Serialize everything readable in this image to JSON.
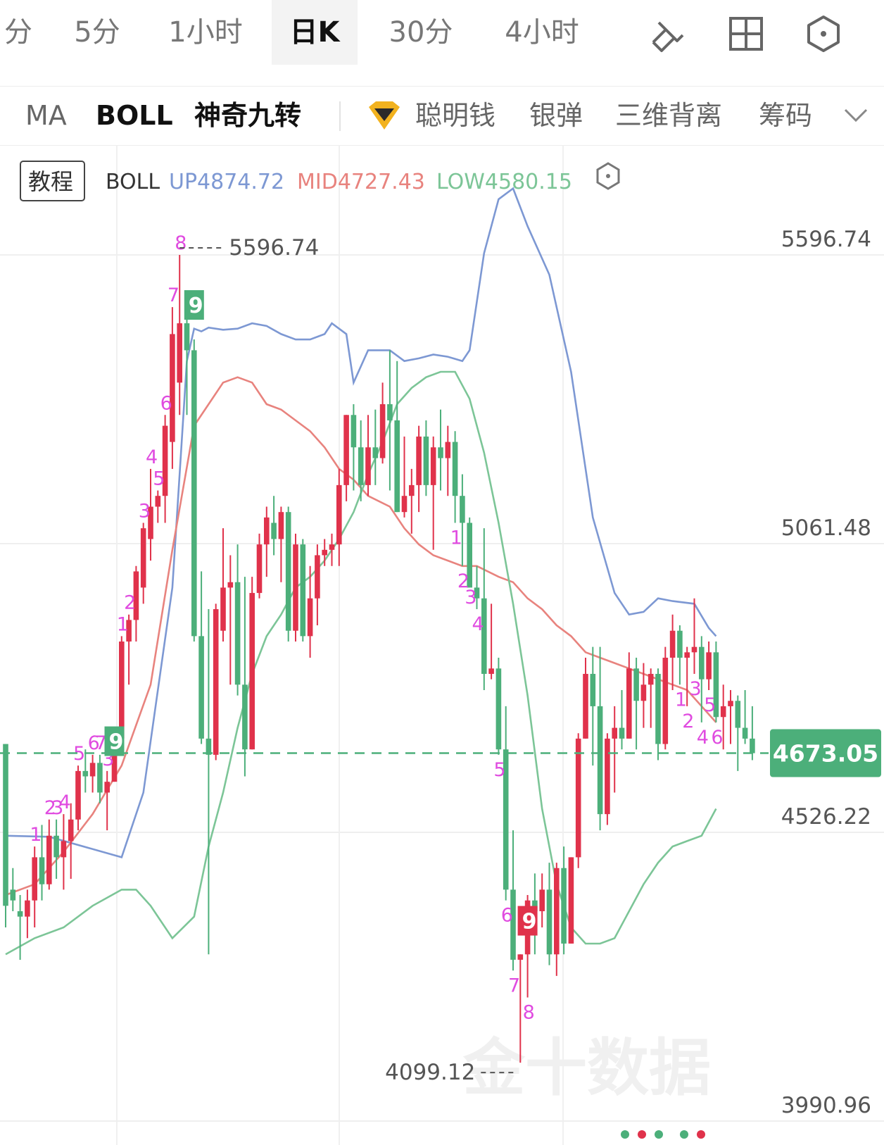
{
  "tabs": [
    {
      "label": "分"
    },
    {
      "label": "5分"
    },
    {
      "label": "1小时"
    },
    {
      "label": "日K",
      "active": true
    },
    {
      "label": "30分"
    },
    {
      "label": "4小时"
    }
  ],
  "tools": [
    "draw-pen-icon",
    "grid-layout-icon",
    "settings-hexagon-icon"
  ],
  "indicators": [
    "MA",
    "BOLL",
    "神奇九转",
    "聪明钱",
    "银弹",
    "三维背离",
    "筹码"
  ],
  "tutorial_label": "教程",
  "legend": {
    "name": "BOLL",
    "up": "UP4874.72",
    "mid": "MID4727.43",
    "low": "LOW4580.15"
  },
  "colors": {
    "up_candle": "#e0324b",
    "down_candle": "#4caf7a",
    "boll_up": "#7d98d3",
    "boll_mid": "#e8837e",
    "boll_low": "#7cc597",
    "td_label": "#e04be0",
    "current_price_bg": "#4caf7a"
  },
  "chart_data": {
    "type": "candlestick",
    "y_axis_ticks": [
      "5596.74",
      "5061.48",
      "4526.22",
      "3990.96"
    ],
    "current_price": "4673.05",
    "high_label": "5596.74",
    "low_label": "4099.12",
    "candles": [
      [
        4690,
        4690,
        4350,
        4390
      ],
      [
        4420,
        4460,
        4380,
        4400
      ],
      [
        4380,
        4410,
        4290,
        4370
      ],
      [
        4370,
        4420,
        4330,
        4400
      ],
      [
        4400,
        4500,
        4350,
        4480
      ],
      [
        4480,
        4540,
        4400,
        4430
      ],
      [
        4430,
        4550,
        4420,
        4520
      ],
      [
        4520,
        4550,
        4440,
        4480
      ],
      [
        4480,
        4560,
        4420,
        4510
      ],
      [
        4510,
        4580,
        4440,
        4550
      ],
      [
        4550,
        4650,
        4530,
        4640
      ],
      [
        4640,
        4680,
        4600,
        4630
      ],
      [
        4630,
        4670,
        4600,
        4655
      ],
      [
        4655,
        4670,
        4580,
        4600
      ],
      [
        4600,
        4640,
        4530,
        4620
      ],
      [
        4620,
        4720,
        4620,
        4700
      ],
      [
        4700,
        4890,
        4680,
        4880
      ],
      [
        4880,
        4930,
        4800,
        4920
      ],
      [
        4920,
        5020,
        4880,
        5010
      ],
      [
        4980,
        5100,
        4950,
        5090
      ],
      [
        5070,
        5200,
        5030,
        5130
      ],
      [
        5130,
        5160,
        5100,
        5150
      ],
      [
        5150,
        5300,
        5100,
        5280
      ],
      [
        5250,
        5500,
        5200,
        5450
      ],
      [
        5360,
        5596.74,
        5300,
        5470
      ],
      [
        5470,
        5490,
        5300,
        5420
      ],
      [
        5420,
        5440,
        4880,
        4890
      ],
      [
        4890,
        5010,
        4690,
        4700
      ],
      [
        4700,
        4940,
        4300,
        4670
      ],
      [
        4670,
        4950,
        4660,
        4940
      ],
      [
        4900,
        5090,
        4880,
        4980
      ],
      [
        4980,
        5040,
        4800,
        4990
      ],
      [
        4990,
        5060,
        4780,
        4800
      ],
      [
        4800,
        5000,
        4630,
        4680
      ],
      [
        4680,
        5000,
        4680,
        4970
      ],
      [
        4970,
        5080,
        4960,
        5060
      ],
      [
        5060,
        5130,
        5000,
        5110
      ],
      [
        5100,
        5150,
        5040,
        5070
      ],
      [
        5070,
        5130,
        4990,
        5120
      ],
      [
        5120,
        5130,
        4880,
        4900
      ],
      [
        4900,
        5080,
        4880,
        5060
      ],
      [
        5060,
        5070,
        4880,
        4890
      ],
      [
        4890,
        5020,
        4850,
        4960
      ],
      [
        4960,
        5060,
        4910,
        5040
      ],
      [
        5040,
        5070,
        5020,
        5050
      ],
      [
        5050,
        5080,
        5020,
        5060
      ],
      [
        5060,
        5200,
        5020,
        5170
      ],
      [
        5170,
        5300,
        5140,
        5300
      ],
      [
        5300,
        5320,
        5160,
        5240
      ],
      [
        5240,
        5290,
        5140,
        5170
      ],
      [
        5170,
        5300,
        5150,
        5240
      ],
      [
        5240,
        5310,
        5170,
        5220
      ],
      [
        5220,
        5360,
        5210,
        5320
      ],
      [
        5320,
        5420,
        5160,
        5290
      ],
      [
        5290,
        5400,
        5120,
        5120
      ],
      [
        5120,
        5260,
        5110,
        5150
      ],
      [
        5150,
        5200,
        5080,
        5170
      ],
      [
        5170,
        5280,
        5120,
        5260
      ],
      [
        5260,
        5290,
        5150,
        5170
      ],
      [
        5170,
        5260,
        5050,
        5240
      ],
      [
        5240,
        5310,
        5160,
        5220
      ],
      [
        5220,
        5280,
        5150,
        5250
      ],
      [
        5250,
        5270,
        5100,
        5150
      ],
      [
        5150,
        5190,
        5020,
        5100
      ],
      [
        5100,
        5110,
        4990,
        4980
      ],
      [
        4980,
        5020,
        4940,
        4960
      ],
      [
        4960,
        5090,
        4790,
        4820
      ],
      [
        4820,
        4950,
        4810,
        4830
      ],
      [
        4830,
        4850,
        4670,
        4680
      ],
      [
        4680,
        4760,
        4400,
        4420
      ],
      [
        4420,
        4530,
        4270,
        4290
      ],
      [
        4290,
        4300,
        4099.12,
        4300
      ],
      [
        4300,
        4410,
        4220,
        4400
      ],
      [
        4400,
        4450,
        4300,
        4380
      ],
      [
        4380,
        4450,
        4350,
        4420
      ],
      [
        4420,
        4470,
        4280,
        4300
      ],
      [
        4300,
        4470,
        4260,
        4460
      ],
      [
        4460,
        4500,
        4300,
        4320
      ],
      [
        4320,
        4480,
        4320,
        4480
      ],
      [
        4480,
        4710,
        4460,
        4700
      ],
      [
        4700,
        4850,
        4700,
        4820
      ],
      [
        4820,
        4870,
        4650,
        4760
      ],
      [
        4760,
        4870,
        4530,
        4560
      ],
      [
        4560,
        4710,
        4540,
        4700
      ],
      [
        4700,
        4760,
        4600,
        4720
      ],
      [
        4720,
        4790,
        4680,
        4700
      ],
      [
        4700,
        4860,
        4700,
        4830
      ],
      [
        4830,
        4850,
        4680,
        4770
      ],
      [
        4770,
        4840,
        4720,
        4800
      ],
      [
        4800,
        4830,
        4720,
        4820
      ],
      [
        4820,
        4830,
        4660,
        4690
      ],
      [
        4690,
        4870,
        4680,
        4850
      ],
      [
        4850,
        4930,
        4790,
        4900
      ],
      [
        4900,
        4910,
        4800,
        4850
      ],
      [
        4850,
        4870,
        4760,
        4860
      ],
      [
        4860,
        4960,
        4820,
        4870
      ],
      [
        4870,
        4890,
        4730,
        4810
      ],
      [
        4810,
        4880,
        4790,
        4860
      ],
      [
        4860,
        4880,
        4730,
        4740
      ],
      [
        4740,
        4800,
        4680,
        4760
      ],
      [
        4760,
        4790,
        4690,
        4770
      ],
      [
        4770,
        4780,
        4640,
        4720
      ],
      [
        4720,
        4790,
        4690,
        4700
      ],
      [
        4700,
        4760,
        4660,
        4673
      ]
    ],
    "boll_up": [
      [
        0,
        4520
      ],
      [
        6,
        4518
      ],
      [
        16,
        4480
      ],
      [
        19,
        4600
      ],
      [
        23,
        4980
      ],
      [
        25,
        5400
      ],
      [
        26,
        5460
      ],
      [
        27,
        5455
      ],
      [
        28,
        5462
      ],
      [
        30,
        5458
      ],
      [
        32,
        5460
      ],
      [
        34,
        5470
      ],
      [
        36,
        5465
      ],
      [
        38,
        5450
      ],
      [
        40,
        5440
      ],
      [
        42,
        5440
      ],
      [
        44,
        5450
      ],
      [
        45,
        5470
      ],
      [
        47,
        5450
      ],
      [
        48,
        5360
      ],
      [
        50,
        5420
      ],
      [
        53,
        5420
      ],
      [
        55,
        5400
      ],
      [
        57,
        5405
      ],
      [
        59,
        5412
      ],
      [
        61,
        5408
      ],
      [
        63,
        5400
      ],
      [
        64,
        5420
      ],
      [
        66,
        5600
      ],
      [
        68,
        5700
      ],
      [
        70,
        5720
      ],
      [
        72,
        5650
      ],
      [
        75,
        5560
      ],
      [
        78,
        5380
      ],
      [
        81,
        5110
      ],
      [
        84,
        4970
      ],
      [
        86,
        4930
      ],
      [
        88,
        4935
      ],
      [
        90,
        4960
      ],
      [
        92,
        4955
      ],
      [
        95,
        4950
      ],
      [
        97,
        4905
      ],
      [
        98,
        4890
      ]
    ],
    "boll_mid": [
      [
        0,
        4410
      ],
      [
        4,
        4430
      ],
      [
        8,
        4490
      ],
      [
        12,
        4560
      ],
      [
        16,
        4650
      ],
      [
        20,
        4800
      ],
      [
        23,
        5050
      ],
      [
        26,
        5280
      ],
      [
        28,
        5320
      ],
      [
        30,
        5360
      ],
      [
        32,
        5370
      ],
      [
        34,
        5360
      ],
      [
        36,
        5320
      ],
      [
        38,
        5310
      ],
      [
        40,
        5290
      ],
      [
        42,
        5270
      ],
      [
        44,
        5240
      ],
      [
        46,
        5200
      ],
      [
        48,
        5180
      ],
      [
        50,
        5150
      ],
      [
        53,
        5130
      ],
      [
        55,
        5090
      ],
      [
        57,
        5060
      ],
      [
        59,
        5040
      ],
      [
        61,
        5030
      ],
      [
        63,
        5020
      ],
      [
        65,
        5020
      ],
      [
        68,
        5000
      ],
      [
        70,
        4990
      ],
      [
        72,
        4960
      ],
      [
        74,
        4940
      ],
      [
        76,
        4910
      ],
      [
        78,
        4890
      ],
      [
        80,
        4860
      ],
      [
        82,
        4850
      ],
      [
        84,
        4840
      ],
      [
        86,
        4830
      ],
      [
        88,
        4820
      ],
      [
        90,
        4810
      ],
      [
        92,
        4800
      ],
      [
        94,
        4790
      ],
      [
        96,
        4760
      ],
      [
        98,
        4730
      ]
    ],
    "boll_low": [
      [
        0,
        4300
      ],
      [
        4,
        4330
      ],
      [
        8,
        4350
      ],
      [
        12,
        4390
      ],
      [
        16,
        4420
      ],
      [
        18,
        4420
      ],
      [
        20,
        4390
      ],
      [
        23,
        4330
      ],
      [
        26,
        4370
      ],
      [
        28,
        4500
      ],
      [
        30,
        4600
      ],
      [
        32,
        4720
      ],
      [
        34,
        4820
      ],
      [
        36,
        4890
      ],
      [
        38,
        4930
      ],
      [
        40,
        4980
      ],
      [
        42,
        5000
      ],
      [
        44,
        5030
      ],
      [
        46,
        5070
      ],
      [
        48,
        5120
      ],
      [
        50,
        5190
      ],
      [
        52,
        5250
      ],
      [
        54,
        5320
      ],
      [
        56,
        5350
      ],
      [
        58,
        5370
      ],
      [
        60,
        5380
      ],
      [
        62,
        5380
      ],
      [
        64,
        5330
      ],
      [
        66,
        5230
      ],
      [
        68,
        5100
      ],
      [
        70,
        4950
      ],
      [
        72,
        4780
      ],
      [
        74,
        4570
      ],
      [
        76,
        4430
      ],
      [
        78,
        4350
      ],
      [
        80,
        4320
      ],
      [
        82,
        4320
      ],
      [
        84,
        4330
      ],
      [
        86,
        4380
      ],
      [
        88,
        4430
      ],
      [
        90,
        4470
      ],
      [
        92,
        4500
      ],
      [
        94,
        4510
      ],
      [
        96,
        4520
      ],
      [
        98,
        4570
      ]
    ],
    "td_marks": [
      {
        "i": 4,
        "label": "1",
        "pos": "above"
      },
      {
        "i": 6,
        "label": "2",
        "pos": "above"
      },
      {
        "i": 7,
        "label": "3",
        "pos": "above"
      },
      {
        "i": 8,
        "label": "4",
        "pos": "above"
      },
      {
        "i": 10,
        "label": "5",
        "pos": "above"
      },
      {
        "i": 12,
        "label": "6",
        "pos": "above"
      },
      {
        "i": 13,
        "label": "7",
        "pos": "above"
      },
      {
        "i": 14,
        "label": "3",
        "pos": "above"
      },
      {
        "i": 16,
        "label": "1",
        "pos": "above"
      },
      {
        "i": 17,
        "label": "2",
        "pos": "above"
      },
      {
        "i": 19,
        "label": "3",
        "pos": "above"
      },
      {
        "i": 20,
        "label": "4",
        "pos": "above"
      },
      {
        "i": 21,
        "label": "5",
        "pos": "above"
      },
      {
        "i": 22,
        "label": "6",
        "pos": "above"
      },
      {
        "i": 23,
        "label": "7",
        "pos": "above"
      },
      {
        "i": 24,
        "label": "8",
        "pos": "above"
      },
      {
        "i": 62,
        "label": "1",
        "pos": "below"
      },
      {
        "i": 63,
        "label": "2",
        "pos": "below"
      },
      {
        "i": 64,
        "label": "3",
        "pos": "below"
      },
      {
        "i": 65,
        "label": "4",
        "pos": "below"
      },
      {
        "i": 68,
        "label": "5",
        "pos": "below"
      },
      {
        "i": 69,
        "label": "6",
        "pos": "below"
      },
      {
        "i": 70,
        "label": "7",
        "pos": "below"
      },
      {
        "i": 72,
        "label": "8",
        "pos": "below"
      },
      {
        "i": 93,
        "label": "1",
        "pos": "below"
      },
      {
        "i": 94,
        "label": "2",
        "pos": "below"
      },
      {
        "i": 95,
        "label": "3",
        "pos": "below"
      },
      {
        "i": 96,
        "label": "4",
        "pos": "below"
      },
      {
        "i": 97,
        "label": "5",
        "pos": "below"
      },
      {
        "i": 98,
        "label": "6",
        "pos": "below"
      }
    ],
    "td_nine": [
      {
        "i": 15,
        "label": "9",
        "color": "green"
      },
      {
        "i": 26,
        "label": "9",
        "color": "green"
      },
      {
        "i": 72,
        "label": "9",
        "color": "red"
      }
    ]
  },
  "watermark": "金十数据"
}
